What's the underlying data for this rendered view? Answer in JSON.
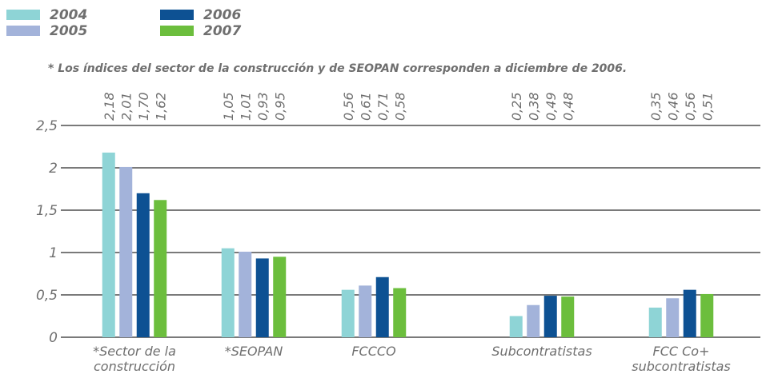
{
  "chart_data": {
    "type": "bar",
    "note": "* Los índices del sector de la construcción y de SEOPAN corresponden a diciembre de 2006.",
    "categories": [
      [
        "*Sector de la",
        "construcción"
      ],
      [
        "*SEOPAN"
      ],
      [
        "FCCCO"
      ],
      [
        "Subcontratistas"
      ],
      [
        "FCC Co+",
        "subcontratistas"
      ]
    ],
    "series": [
      {
        "name": "2004",
        "color": "#8ed4d6",
        "values": [
          2.18,
          1.05,
          0.56,
          0.25,
          0.35
        ],
        "value_labels": [
          "2,18",
          "1,05",
          "0,56",
          "0,25",
          "0,35"
        ]
      },
      {
        "name": "2005",
        "color": "#a3b3da",
        "values": [
          2.01,
          1.01,
          0.61,
          0.38,
          0.46
        ],
        "value_labels": [
          "2,01",
          "1,01",
          "0,61",
          "0,38",
          "0,46"
        ]
      },
      {
        "name": "2006",
        "color": "#0d5193",
        "values": [
          1.7,
          0.93,
          0.71,
          0.49,
          0.56
        ],
        "value_labels": [
          "1,70",
          "0,93",
          "0,71",
          "0,49",
          "0,56"
        ]
      },
      {
        "name": "2007",
        "color": "#6cbe3d",
        "values": [
          1.62,
          0.95,
          0.58,
          0.48,
          0.51
        ],
        "value_labels": [
          "1,62",
          "0,95",
          "0,58",
          "0,48",
          "0,51"
        ]
      }
    ],
    "ylim": [
      0,
      2.5
    ],
    "yticks": [
      0,
      {
        "value": 0.5,
        "label": "0,5"
      },
      1,
      {
        "value": 1.5,
        "label": "1,5"
      },
      2,
      {
        "value": 2.5,
        "label": "2,5"
      }
    ],
    "grid": true
  }
}
